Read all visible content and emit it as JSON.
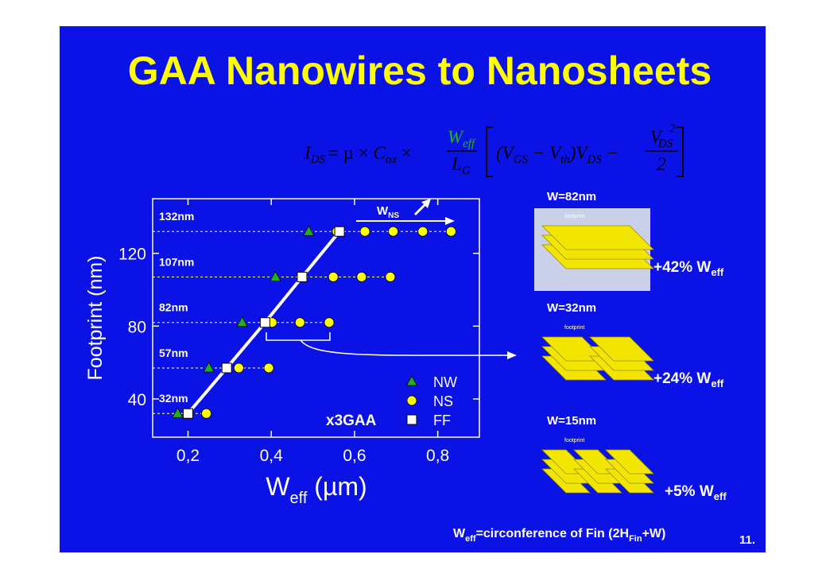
{
  "slide": {
    "title": "GAA Nanowires to Nanosheets",
    "equation": [
      "I",
      "DS",
      "= µ × ",
      "C",
      "ox",
      " ×",
      "W",
      "eff",
      "L",
      "G",
      "(V",
      "GS",
      " − V",
      "th",
      ")V",
      "DS",
      " −",
      "V",
      "DS",
      "2",
      "2"
    ],
    "panels": [
      {
        "label": "W=82nm",
        "footprint": "footprint",
        "gain": "+42% W",
        "gain_sub": "eff"
      },
      {
        "label": "W=32nm",
        "footprint": "footprint",
        "gain": "+24% W",
        "gain_sub": "eff"
      },
      {
        "label": "W=15nm",
        "footprint": "footprint",
        "gain": "+5% W",
        "gain_sub": "eff"
      }
    ],
    "footer": [
      "W",
      "eff",
      "=circonference of Fin (2H",
      "Fin",
      "+W)"
    ],
    "page": "11."
  },
  "chart_data": {
    "type": "scatter",
    "y_label": "Footprint (nm)",
    "x_label": [
      "W",
      "eff",
      " (µm)"
    ],
    "xlim": [
      0.115,
      0.9
    ],
    "ylim": [
      19,
      150
    ],
    "xticks": [
      {
        "value": 0.2,
        "label": "0,2"
      },
      {
        "value": 0.4,
        "label": "0,4"
      },
      {
        "value": 0.6,
        "label": "0,6"
      },
      {
        "value": 0.8,
        "label": "0,8"
      }
    ],
    "yticks": [
      40,
      80,
      120
    ],
    "series": [
      {
        "name": "NW",
        "color": "#22b022",
        "marker": "triangle",
        "x": [
          0.175,
          0.25,
          0.33,
          0.41,
          0.49
        ],
        "values": [
          32,
          57,
          82,
          107,
          132
        ]
      },
      {
        "name": "NS",
        "color": "#ffff00",
        "marker": "circle",
        "x": [
          0.244,
          0.322,
          0.394,
          0.402,
          0.469,
          0.539,
          0.474,
          0.549,
          0.617,
          0.686,
          0.558,
          0.625,
          0.693,
          0.764,
          0.832
        ],
        "values": [
          32,
          57,
          57,
          82,
          82,
          82,
          107,
          107,
          107,
          107,
          132,
          132,
          132,
          132,
          132
        ]
      },
      {
        "name": "FF",
        "color": "#ffffff",
        "marker": "square",
        "line": true,
        "x": [
          0.2,
          0.293,
          0.385,
          0.474,
          0.564
        ],
        "values": [
          32,
          57,
          82,
          107,
          132
        ]
      }
    ],
    "row_labels": [
      "32nm",
      "57nm",
      "82nm",
      "107nm",
      "132nm"
    ],
    "arrow_label": [
      "W",
      "NS"
    ],
    "note": "x3GAA"
  }
}
